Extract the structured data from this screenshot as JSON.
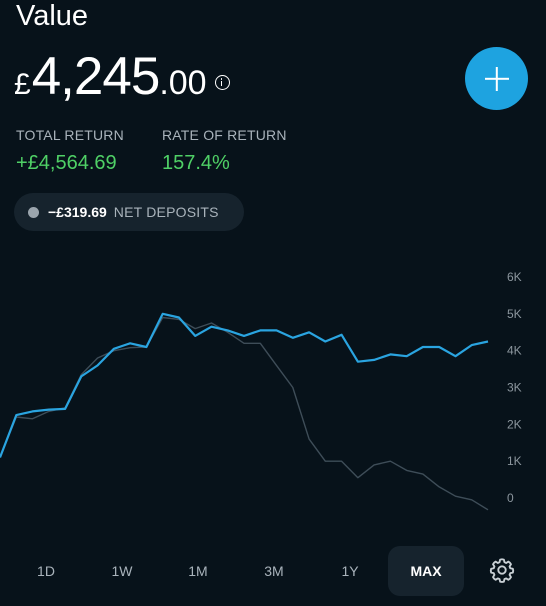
{
  "header": {
    "title": "Value",
    "currency_symbol": "£",
    "value_major": "4,245",
    "value_minor": ".00",
    "info_icon": "info-icon",
    "add_icon": "plus-icon"
  },
  "stats": {
    "total_return_label": "TOTAL RETURN",
    "total_return_value": "+£4,564.69",
    "rate_of_return_label": "RATE OF RETURN",
    "rate_of_return_value": "157.4%"
  },
  "net_deposits": {
    "amount": "−£319.69",
    "label": "NET DEPOSITS"
  },
  "colors": {
    "background": "#07121a",
    "accent": "#1ea3e0",
    "positive": "#4fd066",
    "deposits_line": "#3e4d58",
    "muted_text": "#a9b3bb"
  },
  "chart_data": {
    "type": "line",
    "y_tick_labels": [
      "6K",
      "5K",
      "4K",
      "3K",
      "2K",
      "1K",
      "0"
    ],
    "y_ticks": [
      6000,
      5000,
      4000,
      3000,
      2000,
      1000,
      0
    ],
    "ylim": [
      0,
      6000
    ],
    "grid": false,
    "series": [
      {
        "role": "value",
        "color": "#2aa4e0",
        "values": [
          1100,
          2250,
          2350,
          2400,
          2420,
          3300,
          3600,
          4050,
          4200,
          4100,
          5000,
          4900,
          4400,
          4650,
          4550,
          4400,
          4550,
          4550,
          4350,
          4500,
          4250,
          4430,
          3700,
          3750,
          3900,
          3850,
          4100,
          4100,
          3850,
          4150,
          4250
        ]
      },
      {
        "role": "net_deposits",
        "color": "#3e4d58",
        "values": [
          1100,
          2200,
          2150,
          2350,
          2450,
          3350,
          3800,
          4000,
          4080,
          4100,
          4900,
          4850,
          4600,
          4750,
          4500,
          4200,
          4200,
          3600,
          3000,
          1600,
          1000,
          1000,
          550,
          900,
          1000,
          750,
          650,
          300,
          50,
          -50,
          -320
        ]
      }
    ]
  },
  "ranges": {
    "items": [
      "1D",
      "1W",
      "1M",
      "3M",
      "1Y",
      "MAX"
    ],
    "active": "MAX",
    "settings_icon": "gear-icon"
  }
}
